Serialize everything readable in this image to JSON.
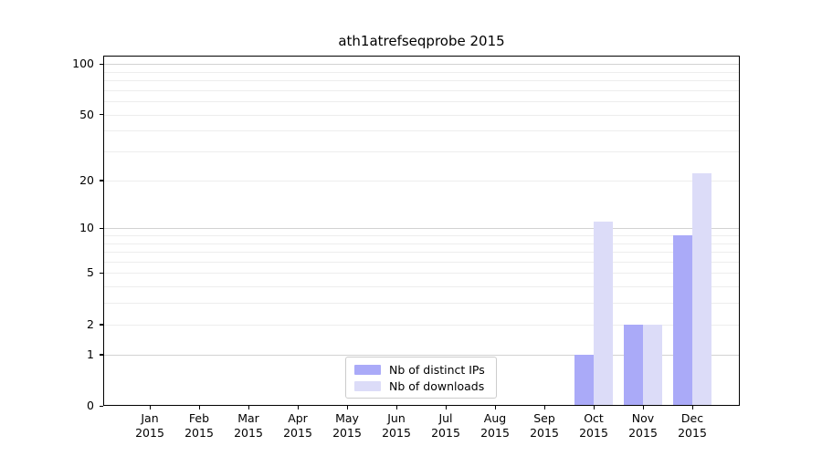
{
  "title": "ath1atrefseqprobe 2015",
  "chart_data": {
    "type": "bar",
    "title": "ath1atrefseqprobe 2015",
    "categories": [
      "Jan 2015",
      "Feb 2015",
      "Mar 2015",
      "Apr 2015",
      "May 2015",
      "Jun 2015",
      "Jul 2015",
      "Aug 2015",
      "Sep 2015",
      "Oct 2015",
      "Nov 2015",
      "Dec 2015"
    ],
    "series": [
      {
        "name": "Nb of distinct IPs",
        "color": "#aaaaf8",
        "values": [
          0,
          0,
          0,
          0,
          0,
          0,
          0,
          0,
          0,
          1,
          2,
          9
        ]
      },
      {
        "name": "Nb of downloads",
        "color": "#dcdcf8",
        "values": [
          0,
          0,
          0,
          0,
          0,
          0,
          0,
          0,
          0,
          11,
          2,
          22
        ]
      }
    ],
    "xlabel": "",
    "ylabel": "",
    "y_scale": "log1p",
    "ylim": [
      0,
      112
    ],
    "y_ticks": [
      0,
      1,
      2,
      5,
      10,
      20,
      50,
      100
    ],
    "gridlines_major": [
      1,
      10,
      100
    ],
    "gridlines_minor": [
      2,
      3,
      4,
      5,
      6,
      7,
      8,
      9,
      20,
      30,
      40,
      50,
      60,
      70,
      80,
      90
    ],
    "grid": "on",
    "legend_position": "lower center"
  }
}
